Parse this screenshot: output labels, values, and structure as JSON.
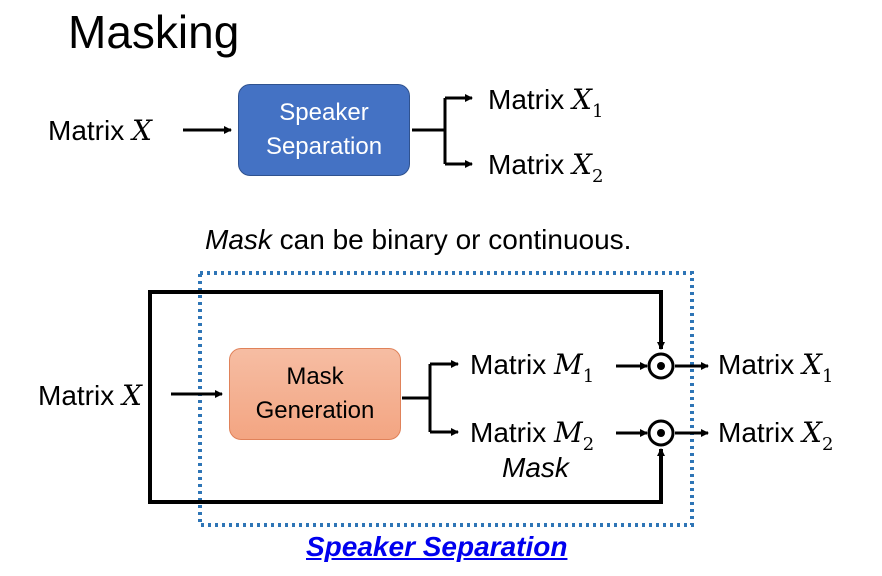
{
  "title": "Masking",
  "top_diagram": {
    "input_label": "Matrix",
    "input_var": "X",
    "box_line1": "Speaker",
    "box_line2": "Separation",
    "output1_label": "Matrix",
    "output1_var": "X",
    "output1_sub": "1",
    "output2_label": "Matrix",
    "output2_var": "X",
    "output2_sub": "2"
  },
  "note": {
    "emphasis": "Mask",
    "rest": " can be binary or continuous."
  },
  "bottom_diagram": {
    "input_label": "Matrix",
    "input_var": "X",
    "box_line1": "Mask",
    "box_line2": "Generation",
    "mask1_label": "Matrix",
    "mask1_var": "M",
    "mask1_sub": "1",
    "mask2_label": "Matrix",
    "mask2_var": "M",
    "mask2_sub": "2",
    "mask_caption": "Mask",
    "output1_label": "Matrix",
    "output1_var": "X",
    "output1_sub": "1",
    "output2_label": "Matrix",
    "output2_var": "X",
    "output2_sub": "2",
    "group_label": "Speaker Separation"
  },
  "colors": {
    "blue_box": "#4472c4",
    "orange_box": "#f4b183",
    "dotted_border": "#2e75b6",
    "link": "#0000ee"
  }
}
